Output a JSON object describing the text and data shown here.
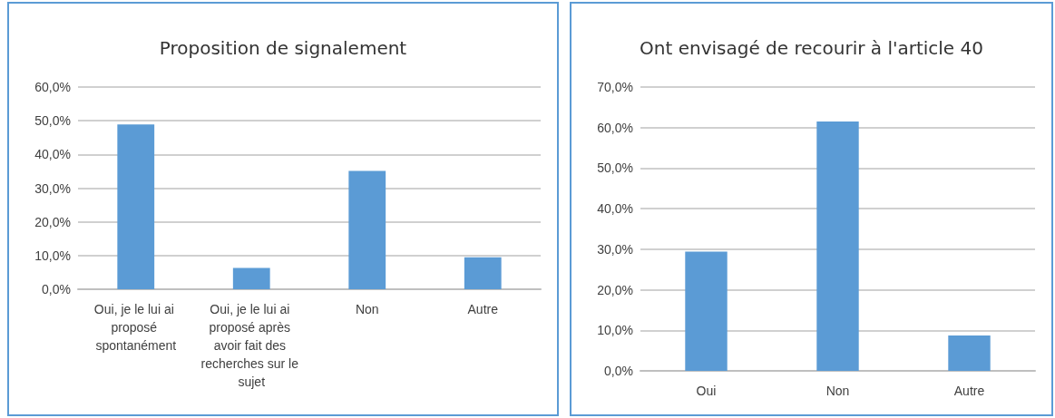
{
  "chart_data": [
    {
      "type": "bar",
      "title": "Proposition de signalement",
      "categories": [
        "Oui, je le lui ai proposé spontanément",
        "Oui, je le lui ai proposé après avoir fait des recherches sur le sujet",
        "Non",
        "Autre"
      ],
      "values": [
        48.9,
        6.3,
        35.1,
        9.5
      ],
      "color": "#5b9bd5",
      "ylim": [
        0,
        60
      ],
      "yticks": [
        {
          "value": 0,
          "label": "0,0%"
        },
        {
          "value": 10,
          "label": "10,0%"
        },
        {
          "value": 20,
          "label": "20,0%"
        },
        {
          "value": 30,
          "label": "30,0%"
        },
        {
          "value": 40,
          "label": "40,0%"
        },
        {
          "value": 50,
          "label": "50,0%"
        },
        {
          "value": 60,
          "label": "60,0%"
        }
      ],
      "grid": "y"
    },
    {
      "type": "bar",
      "title": "Ont envisagé de recourir à l'article 40",
      "categories": [
        "Oui",
        "Non",
        "Autre"
      ],
      "values": [
        29.4,
        61.5,
        8.7
      ],
      "color": "#5b9bd5",
      "ylim": [
        0,
        70
      ],
      "yticks": [
        {
          "value": 0,
          "label": "0,0%"
        },
        {
          "value": 10,
          "label": "10,0%"
        },
        {
          "value": 20,
          "label": "20,0%"
        },
        {
          "value": 30,
          "label": "30,0%"
        },
        {
          "value": 40,
          "label": "40,0%"
        },
        {
          "value": 50,
          "label": "50,0%"
        },
        {
          "value": 60,
          "label": "60,0%"
        },
        {
          "value": 70,
          "label": "70,0%"
        }
      ],
      "grid": "y"
    }
  ]
}
